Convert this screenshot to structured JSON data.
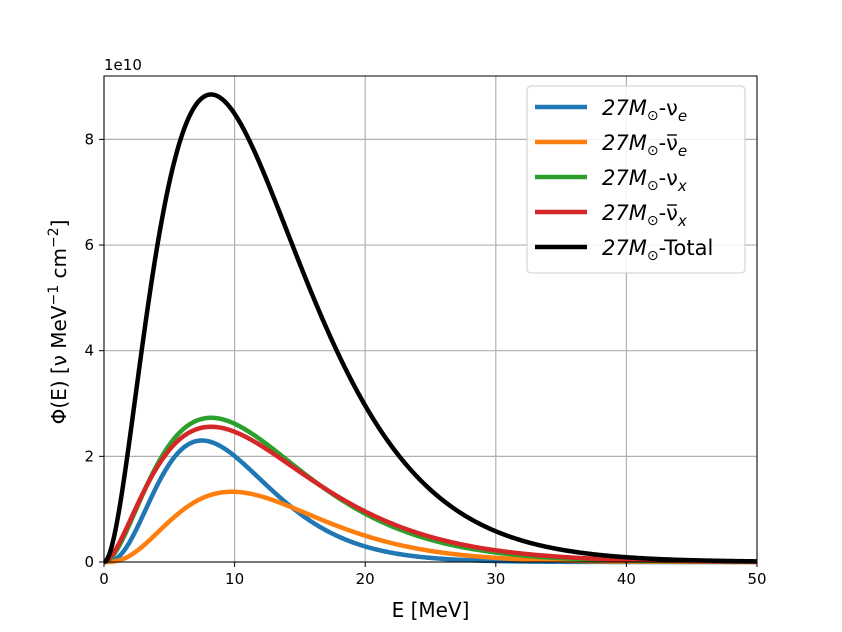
{
  "chart_data": {
    "type": "line",
    "xlabel": "E [MeV]",
    "ylabel": "Φ(E) [ν MeV",
    "ylabel_sup1": "−1",
    "ylabel_mid": " cm",
    "ylabel_sup2": "−2",
    "ylabel_end": "]",
    "offset_text": "1e10",
    "xlim": [
      0,
      50
    ],
    "ylim": [
      0,
      9.2
    ],
    "y_scale": 10000000000.0,
    "xticks": [
      0,
      10,
      20,
      30,
      40,
      50
    ],
    "xtick_labels": [
      "0",
      "10",
      "20",
      "30",
      "40",
      "50"
    ],
    "yticks": [
      0,
      2,
      4,
      6,
      8
    ],
    "ytick_labels": [
      "0",
      "2",
      "4",
      "6",
      "8"
    ],
    "grid": true,
    "legend_position": "top-right",
    "series": [
      {
        "name": "27M⊙-νe",
        "legend_main": "27M",
        "legend_sym": "⊙",
        "legend_nu": "-ν",
        "legend_bar": false,
        "legend_sub": "e",
        "color": "#1f77b4",
        "peak_x": 7.5,
        "peak_y": 2.3,
        "alpha": 3.0
      },
      {
        "name": "27M⊙-ν̄e",
        "legend_main": "27M",
        "legend_sym": "⊙",
        "legend_nu": "-ν",
        "legend_bar": true,
        "legend_sub": "e",
        "color": "#ff7f0e",
        "peak_x": 9.8,
        "peak_y": 1.33,
        "alpha": 3.0
      },
      {
        "name": "27M⊙-νx",
        "legend_main": "27M",
        "legend_sym": "⊙",
        "legend_nu": "-ν",
        "legend_bar": false,
        "legend_sub": "x",
        "color": "#2ca02c",
        "peak_x": 8.2,
        "peak_y": 2.73,
        "alpha": 2.0
      },
      {
        "name": "27M⊙-ν̄x",
        "legend_main": "27M",
        "legend_sym": "⊙",
        "legend_nu": "-ν",
        "legend_bar": true,
        "legend_sub": "x",
        "color": "#d62728",
        "peak_x": 8.2,
        "peak_y": 2.56,
        "alpha": 1.8
      },
      {
        "name": "27M⊙-Total",
        "legend_main": "27M",
        "legend_sym": "⊙",
        "legend_nu": "-Total",
        "legend_bar": false,
        "legend_sub": "",
        "color": "#000000",
        "peak_x": 8.2,
        "peak_y": 8.85,
        "alpha": 2.0
      }
    ]
  }
}
